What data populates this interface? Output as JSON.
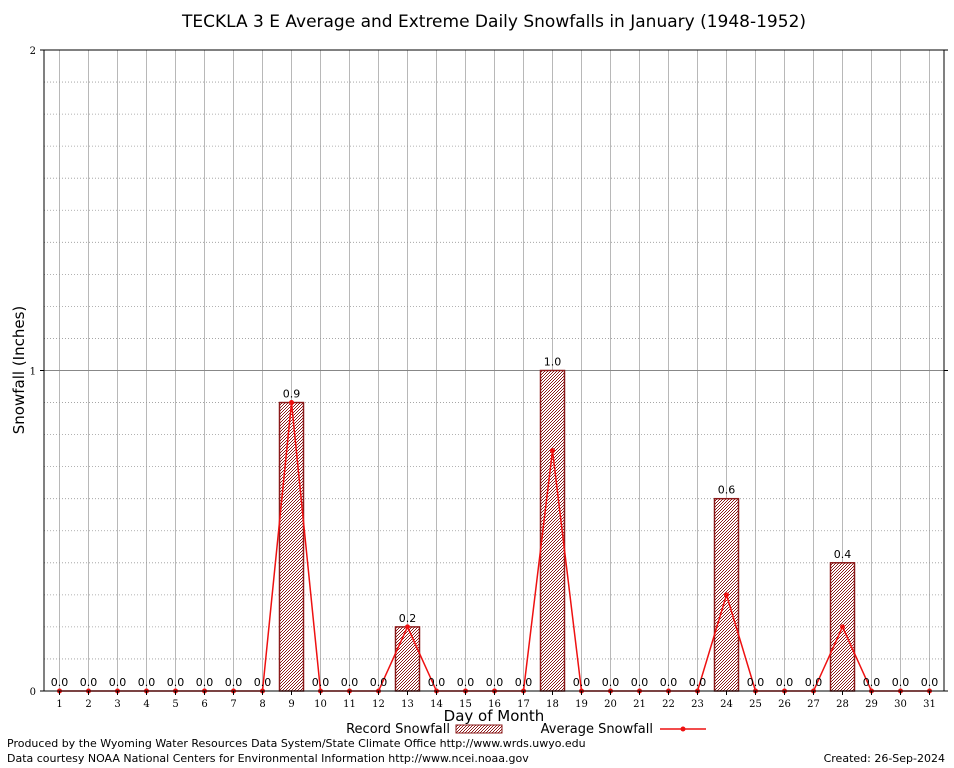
{
  "chart_data": {
    "type": "bar",
    "title": "TECKLA 3 E Average and Extreme Daily Snowfalls in January (1948-1952)",
    "xlabel": "Day of Month",
    "ylabel": "Snowfall (Inches)",
    "ylim": [
      0,
      2
    ],
    "y_ticks": [
      "0",
      "1",
      "2"
    ],
    "categories": [
      "1",
      "2",
      "3",
      "4",
      "5",
      "6",
      "7",
      "8",
      "9",
      "10",
      "11",
      "12",
      "13",
      "14",
      "15",
      "16",
      "17",
      "18",
      "19",
      "20",
      "21",
      "22",
      "23",
      "24",
      "25",
      "26",
      "27",
      "28",
      "29",
      "30",
      "31"
    ],
    "grid": true,
    "legend_position": "bottom",
    "series": [
      {
        "name": "Record Snowfall",
        "type": "bar",
        "color": "#8b1a1a",
        "values": [
          0,
          0,
          0,
          0,
          0,
          0,
          0,
          0,
          0.9,
          0,
          0,
          0,
          0.2,
          0,
          0,
          0,
          0,
          1.0,
          0,
          0,
          0,
          0,
          0,
          0.6,
          0,
          0,
          0,
          0.4,
          0,
          0,
          0
        ],
        "labels": [
          "0.0",
          "0.0",
          "0.0",
          "0.0",
          "0.0",
          "0.0",
          "0.0",
          "0.0",
          "0.9",
          "0.0",
          "0.0",
          "0.0",
          "0.2",
          "0.0",
          "0.0",
          "0.0",
          "0.0",
          "1.0",
          "0.0",
          "0.0",
          "0.0",
          "0.0",
          "0.0",
          "0.6",
          "0.0",
          "0.0",
          "0.0",
          "0.4",
          "0.0",
          "0.0",
          "0.0"
        ]
      },
      {
        "name": "Average Snowfall",
        "type": "line",
        "color": "#ee1111",
        "values": [
          0,
          0,
          0,
          0,
          0,
          0,
          0,
          0,
          0.9,
          0,
          0,
          0,
          0.2,
          0,
          0,
          0,
          0,
          0.75,
          0,
          0,
          0,
          0,
          0,
          0.3,
          0,
          0,
          0,
          0.2,
          0,
          0,
          0
        ]
      }
    ]
  },
  "footer": {
    "produced_by": "Produced by the Wyoming Water Resources Data System/State Climate Office http://www.wrds.uwyo.edu",
    "courtesy": "Data courtesy NOAA National Centers for Environmental Information http://www.ncei.noaa.gov",
    "created": "Created:  26-Sep-2024"
  }
}
